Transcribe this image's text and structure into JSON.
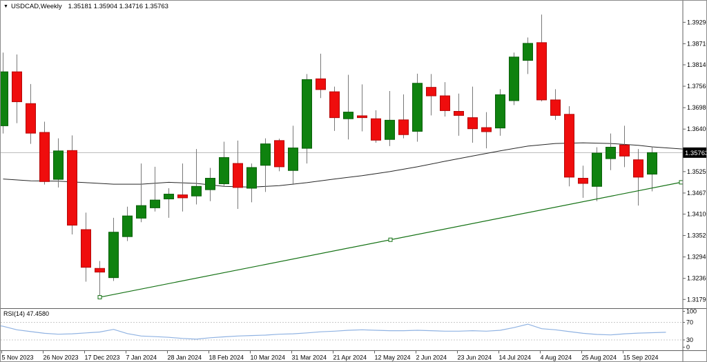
{
  "window": {
    "title_symbol": "USDCAD,Weekly",
    "title_ohlc": "1.35181 1.35904 1.34716 1.35763",
    "dropdown_glyph": "▼"
  },
  "chart_data": {
    "type": "candlestick",
    "symbol": "USDCAD",
    "timeframe": "Weekly",
    "current_price": 1.35763,
    "current_price_label": "1.35763",
    "price_axis_labels": [
      "1.39290",
      "1.38710",
      "1.38140",
      "1.37560",
      "1.36980",
      "1.36400",
      "1.35820",
      "1.35250",
      "1.34670",
      "1.34100",
      "1.33520",
      "1.32940",
      "1.32360",
      "1.31790"
    ],
    "x_axis_labels": [
      {
        "index": 0,
        "label": "5 Nov 2023"
      },
      {
        "index": 3,
        "label": "26 Nov 2023"
      },
      {
        "index": 6,
        "label": "17 Dec 2023"
      },
      {
        "index": 9,
        "label": "7 Jan 2024"
      },
      {
        "index": 12,
        "label": "28 Jan 2024"
      },
      {
        "index": 15,
        "label": "18 Feb 2024"
      },
      {
        "index": 18,
        "label": "10 Mar 2024"
      },
      {
        "index": 21,
        "label": "31 Mar 2024"
      },
      {
        "index": 24,
        "label": "21 Apr 2024"
      },
      {
        "index": 27,
        "label": "12 May 2024"
      },
      {
        "index": 30,
        "label": "2 Jun 2024"
      },
      {
        "index": 33,
        "label": "23 Jun 2024"
      },
      {
        "index": 36,
        "label": "14 Jul 2024"
      },
      {
        "index": 39,
        "label": "4 Aug 2024"
      },
      {
        "index": 42,
        "label": "25 Aug 2024"
      },
      {
        "index": 45,
        "label": "15 Sep 2024"
      }
    ],
    "candles": [
      {
        "date": "5 Nov 2023",
        "o": 1.3649,
        "h": 1.3847,
        "l": 1.3628,
        "c": 1.3795
      },
      {
        "date": "12 Nov 2023",
        "o": 1.3795,
        "h": 1.3842,
        "l": 1.3656,
        "c": 1.3714
      },
      {
        "date": "19 Nov 2023",
        "o": 1.3709,
        "h": 1.3762,
        "l": 1.36,
        "c": 1.3629
      },
      {
        "date": "26 Nov 2023",
        "o": 1.3631,
        "h": 1.366,
        "l": 1.349,
        "c": 1.3498
      },
      {
        "date": "3 Dec 2023",
        "o": 1.3504,
        "h": 1.3615,
        "l": 1.3482,
        "c": 1.3581
      },
      {
        "date": "10 Dec 2023",
        "o": 1.3582,
        "h": 1.3623,
        "l": 1.3355,
        "c": 1.338
      },
      {
        "date": "17 Dec 2023",
        "o": 1.3368,
        "h": 1.3414,
        "l": 1.3227,
        "c": 1.3266
      },
      {
        "date": "24 Dec 2023",
        "o": 1.3263,
        "h": 1.3283,
        "l": 1.3185,
        "c": 1.3253
      },
      {
        "date": "31 Dec 2023",
        "o": 1.3238,
        "h": 1.34,
        "l": 1.3229,
        "c": 1.3361
      },
      {
        "date": "7 Jan 2024",
        "o": 1.3349,
        "h": 1.343,
        "l": 1.3337,
        "c": 1.3405
      },
      {
        "date": "14 Jan 2024",
        "o": 1.3399,
        "h": 1.3547,
        "l": 1.3388,
        "c": 1.3433
      },
      {
        "date": "21 Jan 2024",
        "o": 1.3427,
        "h": 1.3538,
        "l": 1.3417,
        "c": 1.3448
      },
      {
        "date": "28 Jan 2024",
        "o": 1.3451,
        "h": 1.348,
        "l": 1.34,
        "c": 1.3464
      },
      {
        "date": "4 Feb 2024",
        "o": 1.3462,
        "h": 1.3547,
        "l": 1.3417,
        "c": 1.3454
      },
      {
        "date": "11 Feb 2024",
        "o": 1.3459,
        "h": 1.3586,
        "l": 1.3436,
        "c": 1.3485
      },
      {
        "date": "18 Feb 2024",
        "o": 1.3476,
        "h": 1.3535,
        "l": 1.3445,
        "c": 1.3507
      },
      {
        "date": "25 Feb 2024",
        "o": 1.3492,
        "h": 1.3606,
        "l": 1.3485,
        "c": 1.3563
      },
      {
        "date": "3 Mar 2024",
        "o": 1.3547,
        "h": 1.3609,
        "l": 1.3424,
        "c": 1.3482
      },
      {
        "date": "10 Mar 2024",
        "o": 1.348,
        "h": 1.3547,
        "l": 1.3442,
        "c": 1.3536
      },
      {
        "date": "17 Mar 2024",
        "o": 1.3542,
        "h": 1.3615,
        "l": 1.347,
        "c": 1.36
      },
      {
        "date": "24 Mar 2024",
        "o": 1.3609,
        "h": 1.3614,
        "l": 1.3526,
        "c": 1.3538
      },
      {
        "date": "31 Mar 2024",
        "o": 1.3528,
        "h": 1.3649,
        "l": 1.3489,
        "c": 1.3589
      },
      {
        "date": "7 Apr 2024",
        "o": 1.3588,
        "h": 1.3789,
        "l": 1.3547,
        "c": 1.3774
      },
      {
        "date": "14 Apr 2024",
        "o": 1.3776,
        "h": 1.3844,
        "l": 1.3724,
        "c": 1.3747
      },
      {
        "date": "21 Apr 2024",
        "o": 1.3741,
        "h": 1.3755,
        "l": 1.3635,
        "c": 1.3671
      },
      {
        "date": "28 Apr 2024",
        "o": 1.3668,
        "h": 1.3787,
        "l": 1.3612,
        "c": 1.3686
      },
      {
        "date": "5 May 2024",
        "o": 1.3676,
        "h": 1.3761,
        "l": 1.3634,
        "c": 1.3671
      },
      {
        "date": "12 May 2024",
        "o": 1.3668,
        "h": 1.3691,
        "l": 1.3603,
        "c": 1.361
      },
      {
        "date": "19 May 2024",
        "o": 1.3612,
        "h": 1.3743,
        "l": 1.3594,
        "c": 1.3664
      },
      {
        "date": "26 May 2024",
        "o": 1.3665,
        "h": 1.3734,
        "l": 1.3615,
        "c": 1.3625
      },
      {
        "date": "2 Jun 2024",
        "o": 1.3634,
        "h": 1.379,
        "l": 1.3606,
        "c": 1.3764
      },
      {
        "date": "9 Jun 2024",
        "o": 1.3753,
        "h": 1.3789,
        "l": 1.3677,
        "c": 1.373
      },
      {
        "date": "16 Jun 2024",
        "o": 1.373,
        "h": 1.3767,
        "l": 1.3674,
        "c": 1.369
      },
      {
        "date": "23 Jun 2024",
        "o": 1.3688,
        "h": 1.3736,
        "l": 1.3622,
        "c": 1.3677
      },
      {
        "date": "30 Jun 2024",
        "o": 1.3671,
        "h": 1.3755,
        "l": 1.3603,
        "c": 1.3641
      },
      {
        "date": "7 Jul 2024",
        "o": 1.3644,
        "h": 1.3686,
        "l": 1.3588,
        "c": 1.3633
      },
      {
        "date": "14 Jul 2024",
        "o": 1.3643,
        "h": 1.3748,
        "l": 1.3622,
        "c": 1.3733
      },
      {
        "date": "21 Jul 2024",
        "o": 1.3717,
        "h": 1.3847,
        "l": 1.3705,
        "c": 1.3835
      },
      {
        "date": "28 Jul 2024",
        "o": 1.3826,
        "h": 1.3888,
        "l": 1.3789,
        "c": 1.3872
      },
      {
        "date": "4 Aug 2024",
        "o": 1.3874,
        "h": 1.395,
        "l": 1.3715,
        "c": 1.3719
      },
      {
        "date": "11 Aug 2024",
        "o": 1.3719,
        "h": 1.3748,
        "l": 1.3665,
        "c": 1.3677
      },
      {
        "date": "18 Aug 2024",
        "o": 1.368,
        "h": 1.3702,
        "l": 1.3485,
        "c": 1.351
      },
      {
        "date": "25 Aug 2024",
        "o": 1.3507,
        "h": 1.3541,
        "l": 1.3454,
        "c": 1.3493
      },
      {
        "date": "1 Sep 2024",
        "o": 1.3485,
        "h": 1.3591,
        "l": 1.3445,
        "c": 1.3575
      },
      {
        "date": "8 Sep 2024",
        "o": 1.356,
        "h": 1.3628,
        "l": 1.3529,
        "c": 1.3591
      },
      {
        "date": "15 Sep 2024",
        "o": 1.3597,
        "h": 1.3649,
        "l": 1.3537,
        "c": 1.3567
      },
      {
        "date": "22 Sep 2024",
        "o": 1.3557,
        "h": 1.3586,
        "l": 1.3433,
        "c": 1.351
      },
      {
        "date": "29 Sep 2024",
        "o": 1.35181,
        "h": 1.35904,
        "l": 1.34716,
        "c": 1.35763
      }
    ],
    "moving_average": [
      [
        0,
        1.3505
      ],
      [
        2,
        1.35
      ],
      [
        4,
        1.3499
      ],
      [
        6,
        1.3495
      ],
      [
        8,
        1.3491
      ],
      [
        10,
        1.3491
      ],
      [
        12,
        1.3496
      ],
      [
        14,
        1.3493
      ],
      [
        16,
        1.3485
      ],
      [
        18,
        1.3483
      ],
      [
        20,
        1.3487
      ],
      [
        22,
        1.3495
      ],
      [
        24,
        1.3505
      ],
      [
        26,
        1.3514
      ],
      [
        28,
        1.3525
      ],
      [
        30,
        1.3538
      ],
      [
        32,
        1.3553
      ],
      [
        34,
        1.3567
      ],
      [
        36,
        1.3581
      ],
      [
        38,
        1.3594
      ],
      [
        40,
        1.3601
      ],
      [
        42,
        1.3603
      ],
      [
        44,
        1.3601
      ],
      [
        46,
        1.3596
      ],
      [
        47,
        1.3592
      ],
      [
        49.3,
        1.3586
      ]
    ],
    "trendline": {
      "start": {
        "index": 7,
        "price": 1.3185
      },
      "mid": {
        "index": 28.05,
        "price": 1.33405
      },
      "end": {
        "index": 49.1,
        "price": 1.3496
      }
    },
    "rsi": {
      "name": "RSI(14)",
      "value_label": "47.4580",
      "levels": [
        70,
        30
      ],
      "scale_labels": [
        "100",
        "70",
        "30",
        "0"
      ],
      "values": [
        61,
        53,
        49,
        45,
        43,
        44,
        46,
        48,
        54,
        44.5,
        39,
        37.5,
        36,
        33.5,
        31.8,
        35,
        37,
        39,
        40,
        41,
        43,
        44,
        46,
        48.5,
        50,
        52,
        53,
        52,
        51,
        51,
        52,
        51,
        50,
        50,
        51,
        50,
        52,
        58,
        66,
        55.5,
        53,
        49,
        45,
        42.5,
        41.5,
        44,
        45.5,
        46.5,
        47.46
      ]
    },
    "colors": {
      "background": "#ffffff",
      "bull_fill": "#0f820f",
      "bull_stroke": "#0a5f0a",
      "bear_fill": "#ef0d0d",
      "bear_stroke": "#b40808",
      "wick": "#787878",
      "ma_line": "#262626",
      "trend_line": "#127012",
      "rsi_line": "#8fb2e2",
      "level_dashed": "#c8c8c8",
      "axis_line": "#5f5f5f",
      "current_price_line": "#b8b8b8",
      "price_tag_bg": "#000000",
      "price_tag_fg": "#ffffff",
      "text": "#000000"
    }
  }
}
